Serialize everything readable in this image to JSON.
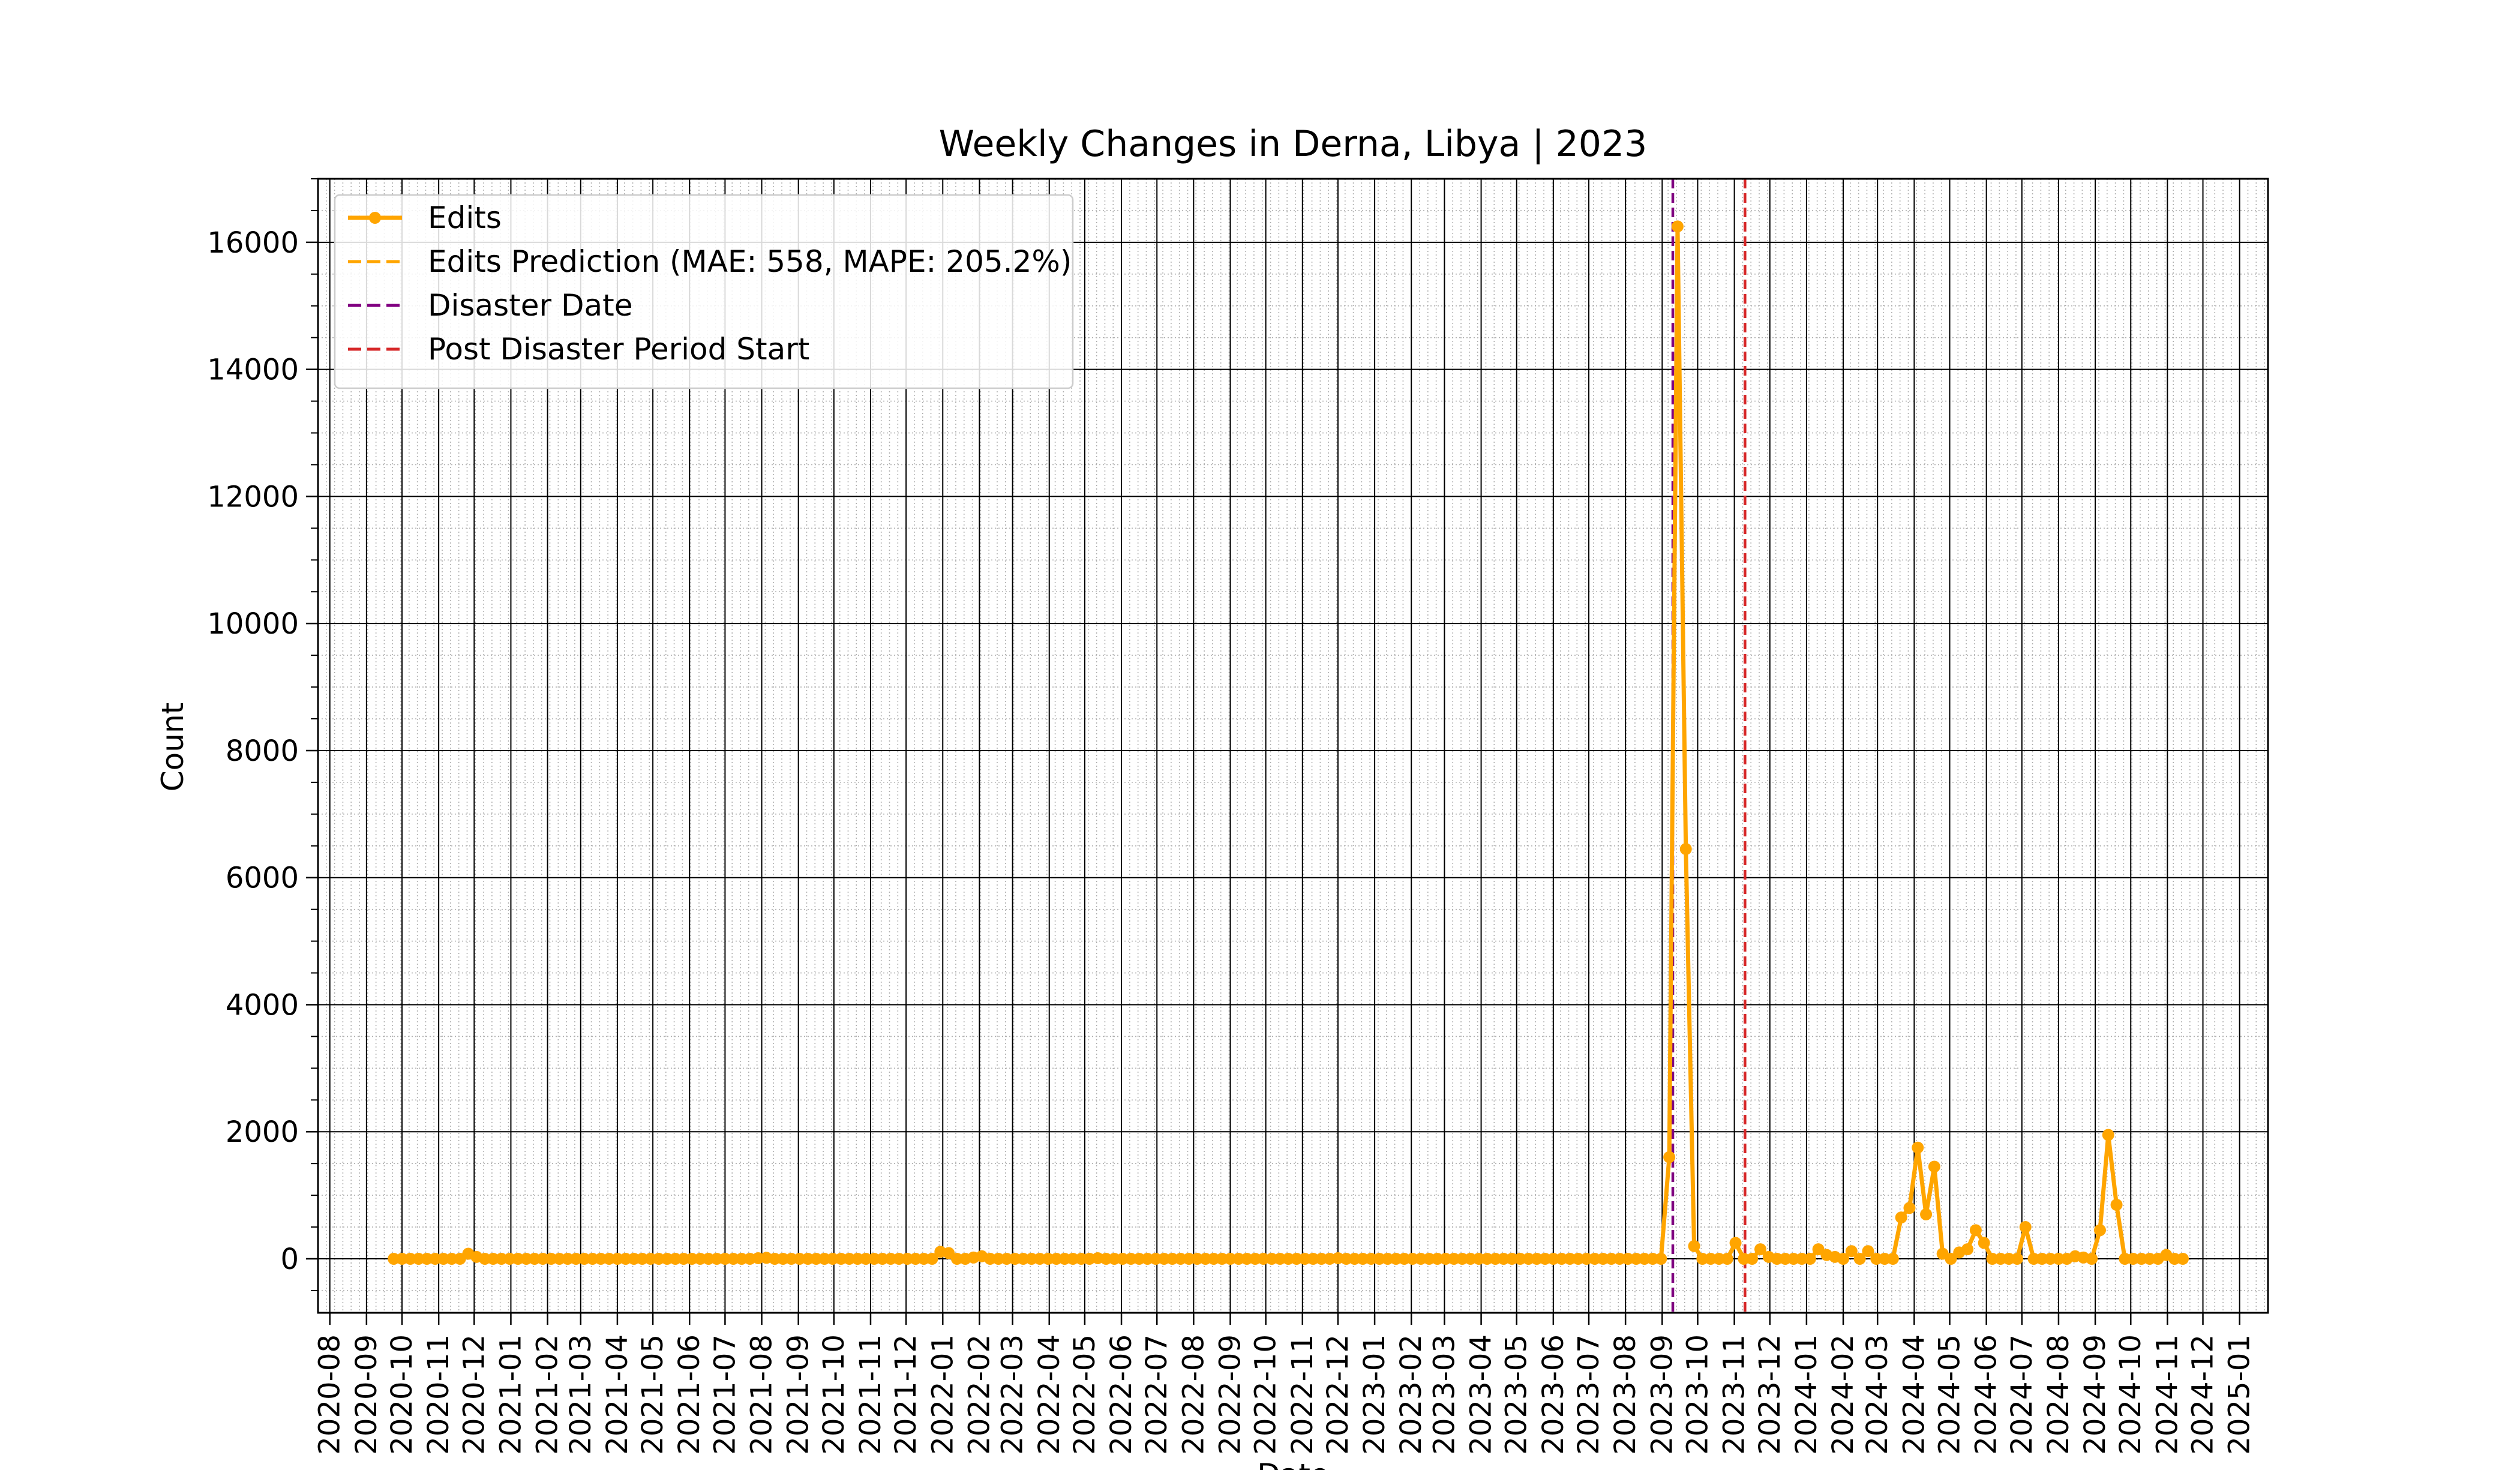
{
  "chart_data": {
    "type": "line",
    "title": "Weekly Changes in Derna, Libya | 2023",
    "xlabel": "Date",
    "ylabel": "Count",
    "x_type": "date",
    "xlim": [
      "2020-07-22",
      "2025-01-25"
    ],
    "ylim": [
      -850,
      17000
    ],
    "y_ticks": [
      0,
      2000,
      4000,
      6000,
      8000,
      10000,
      12000,
      14000,
      16000
    ],
    "x_ticks": [
      "2020-08",
      "2020-09",
      "2020-10",
      "2020-11",
      "2020-12",
      "2021-01",
      "2021-02",
      "2021-03",
      "2021-04",
      "2021-05",
      "2021-06",
      "2021-07",
      "2021-08",
      "2021-09",
      "2021-10",
      "2021-11",
      "2021-12",
      "2022-01",
      "2022-02",
      "2022-03",
      "2022-04",
      "2022-05",
      "2022-06",
      "2022-07",
      "2022-08",
      "2022-09",
      "2022-10",
      "2022-11",
      "2022-12",
      "2023-01",
      "2023-02",
      "2023-03",
      "2023-04",
      "2023-05",
      "2023-06",
      "2023-07",
      "2023-08",
      "2023-09",
      "2023-10",
      "2023-11",
      "2023-12",
      "2024-01",
      "2024-02",
      "2024-03",
      "2024-04",
      "2024-05",
      "2024-06",
      "2024-07",
      "2024-08",
      "2024-09",
      "2024-10",
      "2024-11",
      "2024-12",
      "2025-01"
    ],
    "grid": true,
    "legend_position": "upper-left",
    "series": [
      {
        "name": "Edits",
        "color": "#ffa500",
        "style": "solid-with-markers",
        "points": [
          [
            "2020-09-24",
            0
          ],
          [
            "2020-10-01",
            0
          ],
          [
            "2020-10-08",
            0
          ],
          [
            "2020-10-15",
            0
          ],
          [
            "2020-10-22",
            0
          ],
          [
            "2020-10-29",
            0
          ],
          [
            "2020-11-05",
            0
          ],
          [
            "2020-11-12",
            0
          ],
          [
            "2020-11-19",
            0
          ],
          [
            "2020-11-26",
            80
          ],
          [
            "2020-12-03",
            30
          ],
          [
            "2020-12-10",
            0
          ],
          [
            "2020-12-17",
            0
          ],
          [
            "2020-12-24",
            0
          ],
          [
            "2020-12-31",
            0
          ],
          [
            "2021-01-07",
            0
          ],
          [
            "2021-01-14",
            0
          ],
          [
            "2021-01-21",
            0
          ],
          [
            "2021-01-28",
            0
          ],
          [
            "2021-02-04",
            0
          ],
          [
            "2021-02-11",
            0
          ],
          [
            "2021-02-18",
            0
          ],
          [
            "2021-02-25",
            0
          ],
          [
            "2021-03-04",
            0
          ],
          [
            "2021-03-11",
            0
          ],
          [
            "2021-03-18",
            0
          ],
          [
            "2021-03-25",
            0
          ],
          [
            "2021-04-01",
            0
          ],
          [
            "2021-04-08",
            0
          ],
          [
            "2021-04-15",
            0
          ],
          [
            "2021-04-22",
            0
          ],
          [
            "2021-04-29",
            0
          ],
          [
            "2021-05-06",
            0
          ],
          [
            "2021-05-13",
            0
          ],
          [
            "2021-05-20",
            0
          ],
          [
            "2021-05-27",
            0
          ],
          [
            "2021-06-03",
            0
          ],
          [
            "2021-06-10",
            0
          ],
          [
            "2021-06-17",
            0
          ],
          [
            "2021-06-24",
            0
          ],
          [
            "2021-07-01",
            0
          ],
          [
            "2021-07-08",
            0
          ],
          [
            "2021-07-15",
            0
          ],
          [
            "2021-07-22",
            0
          ],
          [
            "2021-07-29",
            10
          ],
          [
            "2021-08-05",
            15
          ],
          [
            "2021-08-12",
            0
          ],
          [
            "2021-08-19",
            0
          ],
          [
            "2021-08-26",
            0
          ],
          [
            "2021-09-02",
            0
          ],
          [
            "2021-09-09",
            0
          ],
          [
            "2021-09-16",
            0
          ],
          [
            "2021-09-23",
            0
          ],
          [
            "2021-09-30",
            0
          ],
          [
            "2021-10-07",
            0
          ],
          [
            "2021-10-14",
            0
          ],
          [
            "2021-10-21",
            0
          ],
          [
            "2021-10-28",
            0
          ],
          [
            "2021-11-04",
            0
          ],
          [
            "2021-11-11",
            0
          ],
          [
            "2021-11-18",
            0
          ],
          [
            "2021-11-25",
            0
          ],
          [
            "2021-12-02",
            0
          ],
          [
            "2021-12-09",
            0
          ],
          [
            "2021-12-16",
            0
          ],
          [
            "2021-12-23",
            0
          ],
          [
            "2021-12-30",
            110
          ],
          [
            "2022-01-06",
            90
          ],
          [
            "2022-01-13",
            0
          ],
          [
            "2022-01-20",
            0
          ],
          [
            "2022-01-27",
            20
          ],
          [
            "2022-02-03",
            40
          ],
          [
            "2022-02-10",
            0
          ],
          [
            "2022-02-17",
            0
          ],
          [
            "2022-02-24",
            0
          ],
          [
            "2022-03-03",
            0
          ],
          [
            "2022-03-10",
            0
          ],
          [
            "2022-03-17",
            0
          ],
          [
            "2022-03-24",
            0
          ],
          [
            "2022-03-31",
            0
          ],
          [
            "2022-04-07",
            0
          ],
          [
            "2022-04-14",
            0
          ],
          [
            "2022-04-21",
            0
          ],
          [
            "2022-04-28",
            0
          ],
          [
            "2022-05-05",
            0
          ],
          [
            "2022-05-12",
            10
          ],
          [
            "2022-05-19",
            0
          ],
          [
            "2022-05-26",
            0
          ],
          [
            "2022-06-02",
            0
          ],
          [
            "2022-06-09",
            0
          ],
          [
            "2022-06-16",
            0
          ],
          [
            "2022-06-23",
            0
          ],
          [
            "2022-06-30",
            0
          ],
          [
            "2022-07-07",
            0
          ],
          [
            "2022-07-14",
            0
          ],
          [
            "2022-07-21",
            0
          ],
          [
            "2022-07-28",
            0
          ],
          [
            "2022-08-04",
            0
          ],
          [
            "2022-08-11",
            0
          ],
          [
            "2022-08-18",
            0
          ],
          [
            "2022-08-25",
            0
          ],
          [
            "2022-09-01",
            0
          ],
          [
            "2022-09-08",
            0
          ],
          [
            "2022-09-15",
            0
          ],
          [
            "2022-09-22",
            0
          ],
          [
            "2022-09-29",
            0
          ],
          [
            "2022-10-06",
            0
          ],
          [
            "2022-10-13",
            0
          ],
          [
            "2022-10-20",
            0
          ],
          [
            "2022-10-27",
            0
          ],
          [
            "2022-11-03",
            0
          ],
          [
            "2022-11-10",
            0
          ],
          [
            "2022-11-17",
            0
          ],
          [
            "2022-11-24",
            0
          ],
          [
            "2022-12-01",
            10
          ],
          [
            "2022-12-08",
            0
          ],
          [
            "2022-12-15",
            0
          ],
          [
            "2022-12-22",
            0
          ],
          [
            "2022-12-29",
            0
          ],
          [
            "2023-01-05",
            0
          ],
          [
            "2023-01-12",
            0
          ],
          [
            "2023-01-19",
            0
          ],
          [
            "2023-01-26",
            0
          ],
          [
            "2023-02-02",
            0
          ],
          [
            "2023-02-09",
            0
          ],
          [
            "2023-02-16",
            0
          ],
          [
            "2023-02-23",
            0
          ],
          [
            "2023-03-02",
            0
          ],
          [
            "2023-03-09",
            0
          ],
          [
            "2023-03-16",
            0
          ],
          [
            "2023-03-23",
            0
          ],
          [
            "2023-03-30",
            0
          ],
          [
            "2023-04-06",
            0
          ],
          [
            "2023-04-13",
            0
          ],
          [
            "2023-04-20",
            0
          ],
          [
            "2023-04-27",
            0
          ],
          [
            "2023-05-04",
            0
          ],
          [
            "2023-05-11",
            0
          ],
          [
            "2023-05-18",
            0
          ],
          [
            "2023-05-25",
            0
          ],
          [
            "2023-06-01",
            0
          ],
          [
            "2023-06-08",
            0
          ],
          [
            "2023-06-15",
            0
          ],
          [
            "2023-06-22",
            0
          ],
          [
            "2023-06-29",
            0
          ],
          [
            "2023-07-06",
            0
          ],
          [
            "2023-07-13",
            0
          ],
          [
            "2023-07-20",
            0
          ],
          [
            "2023-07-27",
            0
          ],
          [
            "2023-08-03",
            0
          ],
          [
            "2023-08-10",
            0
          ],
          [
            "2023-08-17",
            0
          ],
          [
            "2023-08-24",
            0
          ],
          [
            "2023-08-31",
            0
          ],
          [
            "2023-09-07",
            1600
          ],
          [
            "2023-09-14",
            16250
          ],
          [
            "2023-09-21",
            6450
          ],
          [
            "2023-09-28",
            200
          ],
          [
            "2023-10-05",
            0
          ],
          [
            "2023-10-12",
            0
          ],
          [
            "2023-10-19",
            0
          ],
          [
            "2023-10-26",
            0
          ],
          [
            "2023-11-02",
            250
          ],
          [
            "2023-11-09",
            0
          ],
          [
            "2023-11-16",
            0
          ],
          [
            "2023-11-23",
            150
          ],
          [
            "2023-11-30",
            30
          ],
          [
            "2023-12-07",
            0
          ],
          [
            "2023-12-14",
            0
          ],
          [
            "2023-12-21",
            0
          ],
          [
            "2023-12-28",
            0
          ],
          [
            "2024-01-04",
            0
          ],
          [
            "2024-01-11",
            150
          ],
          [
            "2024-01-18",
            60
          ],
          [
            "2024-01-25",
            30
          ],
          [
            "2024-02-01",
            0
          ],
          [
            "2024-02-08",
            120
          ],
          [
            "2024-02-15",
            0
          ],
          [
            "2024-02-22",
            120
          ],
          [
            "2024-02-29",
            0
          ],
          [
            "2024-03-07",
            0
          ],
          [
            "2024-03-14",
            0
          ],
          [
            "2024-03-21",
            650
          ],
          [
            "2024-03-28",
            800
          ],
          [
            "2024-04-04",
            1750
          ],
          [
            "2024-04-11",
            700
          ],
          [
            "2024-04-18",
            1450
          ],
          [
            "2024-04-25",
            80
          ],
          [
            "2024-05-02",
            0
          ],
          [
            "2024-05-09",
            100
          ],
          [
            "2024-05-16",
            150
          ],
          [
            "2024-05-23",
            450
          ],
          [
            "2024-05-30",
            250
          ],
          [
            "2024-06-06",
            0
          ],
          [
            "2024-06-13",
            0
          ],
          [
            "2024-06-20",
            0
          ],
          [
            "2024-06-27",
            0
          ],
          [
            "2024-07-04",
            500
          ],
          [
            "2024-07-11",
            0
          ],
          [
            "2024-07-18",
            0
          ],
          [
            "2024-07-25",
            0
          ],
          [
            "2024-08-01",
            0
          ],
          [
            "2024-08-08",
            0
          ],
          [
            "2024-08-15",
            40
          ],
          [
            "2024-08-22",
            20
          ],
          [
            "2024-08-29",
            0
          ],
          [
            "2024-09-05",
            450
          ],
          [
            "2024-09-12",
            1950
          ],
          [
            "2024-09-19",
            850
          ],
          [
            "2024-09-26",
            0
          ],
          [
            "2024-10-03",
            0
          ],
          [
            "2024-10-10",
            0
          ],
          [
            "2024-10-17",
            0
          ],
          [
            "2024-10-24",
            0
          ],
          [
            "2024-10-31",
            60
          ],
          [
            "2024-11-07",
            0
          ],
          [
            "2024-11-14",
            0
          ]
        ]
      },
      {
        "name": "Edits Prediction (MAE: 558, MAPE: 205.2%)",
        "color": "#ffa500",
        "style": "dashed",
        "points": []
      }
    ],
    "vlines": [
      {
        "name": "Disaster Date",
        "x": "2023-09-10",
        "color": "#800080",
        "style": "dashed"
      },
      {
        "name": "Post Disaster Period Start",
        "x": "2023-11-10",
        "color": "#d62728",
        "style": "dashed"
      }
    ]
  }
}
